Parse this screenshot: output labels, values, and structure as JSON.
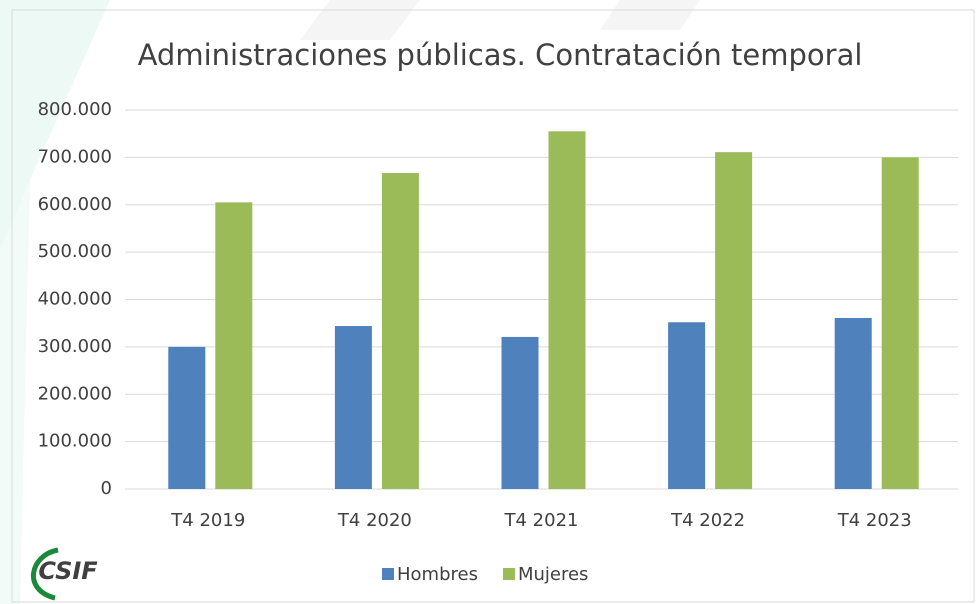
{
  "chart_data": {
    "type": "bar",
    "title": "Administraciones públicas. Contratación temporal",
    "categories": [
      "T4 2019",
      "T4 2020",
      "T4 2021",
      "T4 2022",
      "T4 2023"
    ],
    "series": [
      {
        "name": "Hombres",
        "color": "#4f81bd",
        "values": [
          300000,
          344000,
          321000,
          352000,
          361000
        ]
      },
      {
        "name": "Mujeres",
        "color": "#9bbb59",
        "values": [
          605000,
          667000,
          755000,
          711000,
          700000
        ]
      }
    ],
    "ylim": [
      0,
      800000
    ],
    "yticks": [
      0,
      {
        "value": 100000,
        "label": "100.000"
      },
      {
        "value": 200000,
        "label": "200.000"
      },
      {
        "value": 300000,
        "label": "300.000"
      },
      {
        "value": 400000,
        "label": "400.000"
      },
      {
        "value": 500000,
        "label": "500.000"
      },
      {
        "value": 600000,
        "label": "600.000"
      },
      {
        "value": 700000,
        "label": "700.000"
      },
      {
        "value": 800000,
        "label": "800.000"
      }
    ],
    "grid": true,
    "legend": "bottom"
  },
  "logo": "CSIF"
}
